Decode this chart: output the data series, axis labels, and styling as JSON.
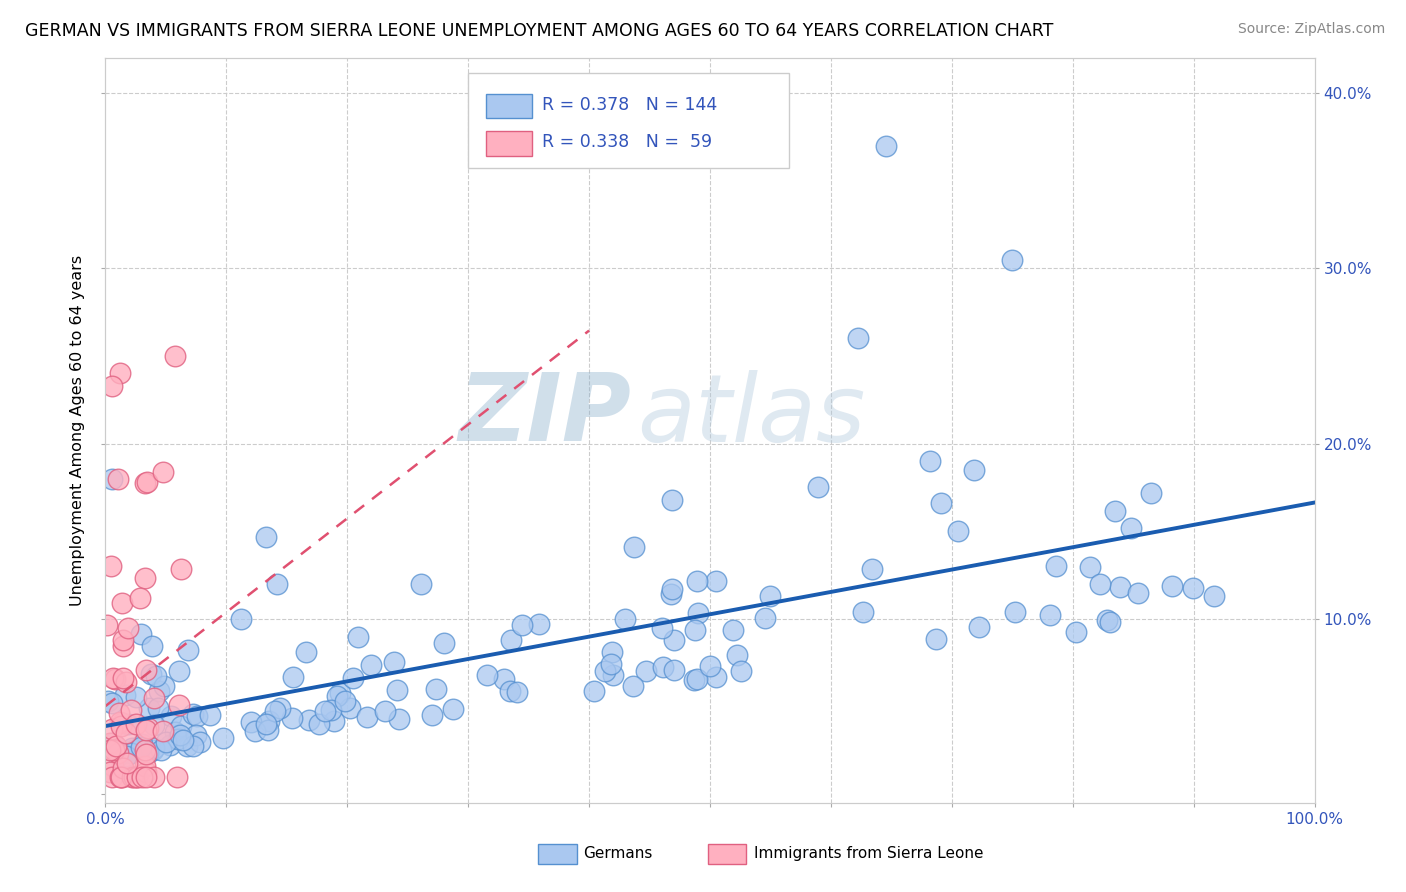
{
  "title": "GERMAN VS IMMIGRANTS FROM SIERRA LEONE UNEMPLOYMENT AMONG AGES 60 TO 64 YEARS CORRELATION CHART",
  "source": "Source: ZipAtlas.com",
  "ylabel": "Unemployment Among Ages 60 to 64 years",
  "xlim": [
    0,
    1.0
  ],
  "ylim": [
    -0.005,
    0.42
  ],
  "german_color": "#aac8f0",
  "german_edge_color": "#5590d0",
  "sl_color": "#ffb0c0",
  "sl_edge_color": "#e06080",
  "trendline_german_color": "#1a5cb0",
  "trendline_sl_color": "#e05070",
  "R_german": 0.378,
  "N_german": 144,
  "R_sl": 0.338,
  "N_sl": 59,
  "watermark_zip": "ZIP",
  "watermark_atlas": "atlas",
  "legend_label_german": "Germans",
  "legend_label_sl": "Immigrants from Sierra Leone",
  "background_color": "#ffffff",
  "grid_color": "#cccccc",
  "axis_label_color": "#3355bb",
  "title_color": "#000000",
  "source_color": "#888888"
}
